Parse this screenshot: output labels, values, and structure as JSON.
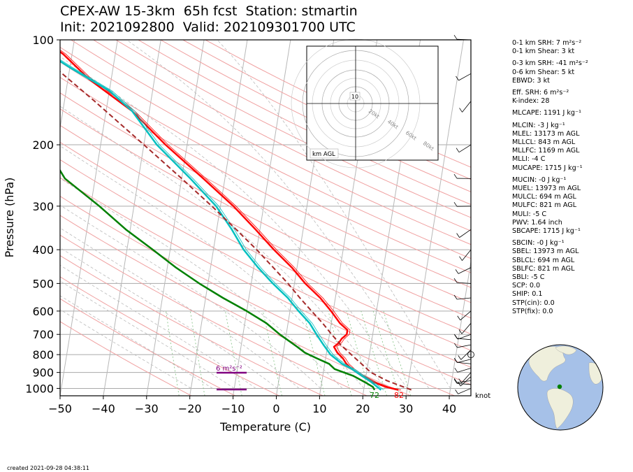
{
  "header": {
    "title_line1": "CPEX-AW 15-3km  65h fcst  Station: stmartin",
    "title_line2": "Init: 2021092800  Valid: 202109301700 UTC"
  },
  "chart_data": {
    "type": "skew-t",
    "xlabel": "Temperature (C)",
    "ylabel": "Pressure (hPa)",
    "xlim": [
      -50,
      45
    ],
    "ylim": [
      1050,
      100
    ],
    "y_log_scale": true,
    "x_ticks": [
      "−50",
      "−40",
      "−30",
      "−20",
      "−10",
      "0",
      "10",
      "20",
      "30",
      "40"
    ],
    "y_ticks": [
      "100",
      "200",
      "300",
      "400",
      "500",
      "600",
      "700",
      "800",
      "900",
      "1000"
    ],
    "series": [
      {
        "color": "#ff0000",
        "points": [
          [
            1010,
            28
          ],
          [
            990,
            25
          ],
          [
            960,
            22
          ],
          [
            920,
            19
          ],
          [
            880,
            16.5
          ],
          [
            850,
            15
          ],
          [
            820,
            14
          ],
          [
            790,
            12.5
          ],
          [
            760,
            11.5
          ],
          [
            740,
            12.5
          ],
          [
            720,
            13
          ],
          [
            700,
            14
          ],
          [
            680,
            14
          ],
          [
            650,
            12
          ],
          [
            600,
            9.5
          ],
          [
            550,
            6.5
          ],
          [
            500,
            2.5
          ],
          [
            450,
            -1.2
          ],
          [
            400,
            -6
          ],
          [
            350,
            -11
          ],
          [
            300,
            -17
          ],
          [
            250,
            -25
          ],
          [
            200,
            -35
          ],
          [
            160,
            -44
          ],
          [
            130,
            -55
          ],
          [
            110,
            -62
          ],
          [
            100,
            -67
          ]
        ]
      },
      {
        "color": "#00c0c0",
        "points": [
          [
            1010,
            24
          ],
          [
            990,
            23
          ],
          [
            960,
            21.5
          ],
          [
            920,
            19
          ],
          [
            880,
            16.5
          ],
          [
            850,
            14
          ],
          [
            800,
            11
          ],
          [
            750,
            9
          ],
          [
            700,
            7
          ],
          [
            650,
            5
          ],
          [
            600,
            2
          ],
          [
            550,
            -1
          ],
          [
            500,
            -5
          ],
          [
            450,
            -9
          ],
          [
            400,
            -13
          ],
          [
            350,
            -16.5
          ],
          [
            300,
            -21
          ],
          [
            250,
            -28
          ],
          [
            200,
            -37
          ],
          [
            160,
            -44
          ],
          [
            140,
            -50
          ],
          [
            120,
            -60
          ],
          [
            100,
            -71
          ]
        ]
      },
      {
        "color": "#008000",
        "points": [
          [
            1010,
            22.5
          ],
          [
            990,
            22
          ],
          [
            960,
            20
          ],
          [
            920,
            17
          ],
          [
            880,
            12.5
          ],
          [
            850,
            11
          ],
          [
            820,
            8
          ],
          [
            790,
            5
          ],
          [
            760,
            3
          ],
          [
            700,
            -1.5
          ],
          [
            650,
            -5
          ],
          [
            600,
            -10
          ],
          [
            550,
            -16
          ],
          [
            500,
            -22
          ],
          [
            450,
            -28
          ],
          [
            400,
            -34
          ],
          [
            350,
            -41
          ],
          [
            300,
            -48
          ],
          [
            250,
            -57
          ],
          [
            200,
            -63
          ],
          [
            160,
            -68
          ],
          [
            140,
            -72
          ],
          [
            120,
            -75
          ],
          [
            100,
            -80
          ]
        ]
      },
      {
        "color": "#a52a2a",
        "dashed": true,
        "points": [
          [
            1010,
            31
          ],
          [
            950,
            25
          ],
          [
            900,
            21
          ],
          [
            850,
            18.5
          ],
          [
            800,
            15.8
          ],
          [
            750,
            13
          ],
          [
            700,
            10.5
          ],
          [
            650,
            8
          ],
          [
            600,
            5
          ],
          [
            550,
            1.8
          ],
          [
            500,
            -1.5
          ],
          [
            450,
            -5.5
          ],
          [
            400,
            -10
          ],
          [
            350,
            -15.5
          ],
          [
            300,
            -22
          ],
          [
            250,
            -30
          ],
          [
            200,
            -40
          ],
          [
            150,
            -53
          ],
          [
            100,
            -72
          ]
        ]
      }
    ],
    "surface_labels": {
      "dewpoint": "72",
      "temperature": "82"
    },
    "srh_bar_label": "6 m²s⁻²",
    "hodograph": {
      "rings_kt": [
        "10",
        "20kt",
        "40kt",
        "60kt",
        "80kt"
      ],
      "ring_label_10": "10",
      "corner_label": "km AGL"
    },
    "wind_barb_units": "knot"
  },
  "params": {
    "srh01": "0-1 km SRH: 7 m²s⁻²",
    "shear01": "0-1 km Shear: 3 kt",
    "srh03": "0-3 km SRH: -41 m²s⁻²",
    "shear06": "0-6 km Shear: 5 kt",
    "ebwd": "EBWD: 3 kt",
    "effsrh": "Eff. SRH: 6 m²s⁻²",
    "kindex": "K-index: 28",
    "mlcape": "MLCAPE: 1191 J kg⁻¹",
    "mlcin": "MLCIN: -3 J kg⁻¹",
    "mlel": "MLEL: 13173 m AGL",
    "mllcl": "MLLCL: 843 m AGL",
    "mllfc": "MLLFC: 1169 m AGL",
    "mlli": "MLLI: -4 C",
    "mucape": "MUCAPE: 1715 J kg⁻¹",
    "mucin": "MUCIN: -0 J kg⁻¹",
    "muel": "MUEL: 13973 m AGL",
    "mulcl": "MULCL: 694 m AGL",
    "mulfc": "MULFC: 821 m AGL",
    "muli": "MULI: -5 C",
    "pwv": "PWV: 1.64 inch",
    "sbcape": "SBCAPE: 1715 J kg⁻¹",
    "sbcin": "SBCIN: -0 J kg⁻¹",
    "sbel": "SBEL: 13973 m AGL",
    "sblcl": "SBLCL: 694 m AGL",
    "sblfc": "SBLFC: 821 m AGL",
    "sbli": "SBLI: -5 C",
    "scp": "SCP: 0.0",
    "ship": "SHIP: 0.1",
    "stpcin": "STP(cin): 0.0",
    "stpfix": "STP(fix): 0.0"
  },
  "footer": {
    "created": "created 2021-09-28 04:38:11"
  }
}
